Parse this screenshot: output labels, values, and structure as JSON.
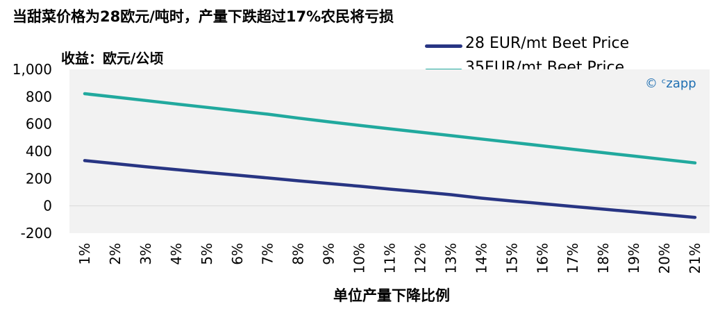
{
  "chart_data": {
    "type": "line",
    "title": "当甜菜价格为28欧元/吨时，产量下跌超过17%农民将亏损",
    "ylabel": "收益：欧元/公顷",
    "xlabel": "单位产量下降比例",
    "categories": [
      "1%",
      "2%",
      "3%",
      "4%",
      "5%",
      "6%",
      "7%",
      "8%",
      "9%",
      "10%",
      "11%",
      "12%",
      "13%",
      "14%",
      "15%",
      "16%",
      "17%",
      "18%",
      "19%",
      "20%",
      "21%"
    ],
    "ylim": [
      -200,
      1000
    ],
    "yticks": [
      {
        "value": 1000,
        "label": "1,000"
      },
      {
        "value": 800,
        "label": "800"
      },
      {
        "value": 600,
        "label": "600"
      },
      {
        "value": 400,
        "label": "400"
      },
      {
        "value": 200,
        "label": "200"
      },
      {
        "value": 0,
        "label": "0"
      },
      {
        "value": -200,
        "label": "-200"
      }
    ],
    "series": [
      {
        "name": "28 EUR/mt Beet Price",
        "color": "#283583",
        "values": [
          332,
          310,
          287,
          266,
          245,
          225,
          205,
          184,
          164,
          144,
          123,
          103,
          82,
          57,
          36,
          16,
          -4,
          -24,
          -44,
          -64,
          -84
        ]
      },
      {
        "name": "35EUR/mt Beet Price",
        "color": "#21a99e",
        "values": [
          822,
          797,
          772,
          747,
          722,
          697,
          672,
          643,
          616,
          590,
          565,
          540,
          515,
          490,
          465,
          440,
          415,
          390,
          365,
          340,
          315
        ]
      }
    ],
    "legend_position": "top-right",
    "grid": false,
    "plot_background": "#f2f2f2",
    "credit": "© ᶜzapp"
  }
}
